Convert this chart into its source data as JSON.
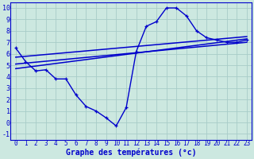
{
  "xlabel": "Graphe des températures (°c)",
  "bg_color": "#cce8e0",
  "grid_color": "#a8ccc8",
  "line_color": "#0000cc",
  "xlim": [
    -0.5,
    23.5
  ],
  "ylim": [
    -1.5,
    10.5
  ],
  "xticks": [
    0,
    1,
    2,
    3,
    4,
    5,
    6,
    7,
    8,
    9,
    10,
    11,
    12,
    13,
    14,
    15,
    16,
    17,
    18,
    19,
    20,
    21,
    22,
    23
  ],
  "yticks": [
    -1,
    0,
    1,
    2,
    3,
    4,
    5,
    6,
    7,
    8,
    9,
    10
  ],
  "curve_main_x": [
    0,
    1,
    2,
    3,
    4,
    5,
    6,
    7,
    8,
    9,
    10,
    11,
    12,
    13,
    14,
    15,
    16,
    17,
    18,
    19,
    20,
    21,
    22,
    23
  ],
  "curve_main_y": [
    6.5,
    5.3,
    4.5,
    4.6,
    3.8,
    3.8,
    2.4,
    1.4,
    1.0,
    0.4,
    -0.3,
    1.3,
    6.2,
    8.4,
    8.8,
    10.0,
    10.0,
    9.3,
    8.0,
    7.4,
    7.2,
    7.0,
    7.0,
    7.2
  ],
  "line1_x": [
    0,
    23
  ],
  "line1_y": [
    4.7,
    7.3
  ],
  "line2_x": [
    0,
    23
  ],
  "line2_y": [
    5.1,
    7.0
  ],
  "line3_x": [
    0,
    23
  ],
  "line3_y": [
    5.7,
    7.5
  ],
  "xlabel_fontsize": 7,
  "tick_fontsize": 5.5
}
